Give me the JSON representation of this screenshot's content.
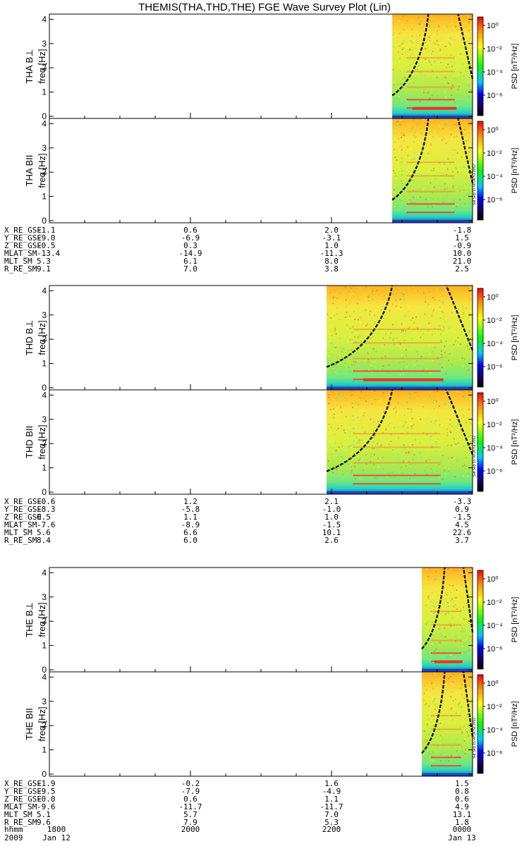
{
  "title": "THEMIS(THA,THD,THE) FGE Wave Survey Plot (Lin)",
  "colorbar": {
    "label": "PSD [nT²/Hz]",
    "tick_labels": [
      "10⁰",
      "10⁻²",
      "10⁻⁴",
      "10⁻⁶"
    ],
    "colors": [
      "#ff0000",
      "#ff8c00",
      "#ffff00",
      "#00ff00",
      "#00c8ff",
      "#0000ff",
      "#1a0060",
      "#000000"
    ]
  },
  "chart_data": [
    {
      "type": "heatmap",
      "probe": "THA",
      "panels": [
        {
          "name": "THA B⊥",
          "ylabel": "freq [Hz]",
          "ylim": [
            0,
            4
          ]
        },
        {
          "name": "THA BII",
          "ylabel": "freq [Hz]",
          "ylim": [
            0,
            4
          ]
        }
      ],
      "yticks": [
        0,
        1,
        2,
        3,
        4
      ],
      "xlim": [
        "1800",
        "0000"
      ],
      "data_start_fraction": 0.81,
      "side_stamp": "Sat Sep 15 00:36:51 2012",
      "ephemeris": [
        {
          "name": "X_RE_GSE",
          "values": [
            "-1.1",
            "0.6",
            "2.0",
            "-1.8"
          ]
        },
        {
          "name": "Y_RE_GSE",
          "values": [
            "-9.0",
            "-6.9",
            "-3.1",
            "1.5"
          ]
        },
        {
          "name": "Z_RE_GSE",
          "values": [
            "-0.5",
            "0.3",
            "1.0",
            "-0.9"
          ]
        },
        {
          "name": "MLAT_SM",
          "values": [
            "-13.4",
            "-14.9",
            "-11.3",
            "10.0"
          ]
        },
        {
          "name": "MLT_SM",
          "values": [
            "5.3",
            "6.1",
            "8.0",
            "21.0"
          ]
        },
        {
          "name": "R_RE_SM",
          "values": [
            "9.1",
            "7.0",
            "3.8",
            "2.5"
          ]
        }
      ]
    },
    {
      "type": "heatmap",
      "probe": "THD",
      "panels": [
        {
          "name": "THD B⊥",
          "ylabel": "freq [Hz]",
          "ylim": [
            0,
            4
          ]
        },
        {
          "name": "THD BII",
          "ylabel": "freq [Hz]",
          "ylim": [
            0,
            4
          ]
        }
      ],
      "yticks": [
        0,
        1,
        2,
        3,
        4
      ],
      "xlim": [
        "1800",
        "0000"
      ],
      "data_start_fraction": 0.655,
      "side_stamp": "Sat Sep 15 00:36:51 2012",
      "ephemeris": [
        {
          "name": "X_RE_GSE",
          "values": [
            "-0.6",
            "1.2",
            "2.1",
            "-3.3"
          ]
        },
        {
          "name": "Y_RE_GSE",
          "values": [
            "-8.3",
            "-5.8",
            "-1.0",
            "0.9"
          ]
        },
        {
          "name": "Z_RE_GSE",
          "values": [
            "0.5",
            "1.1",
            "1.0",
            "-1.5"
          ]
        },
        {
          "name": "MLAT_SM",
          "values": [
            "-7.6",
            "-8.9",
            "-1.5",
            "4.5"
          ]
        },
        {
          "name": "MLT_SM",
          "values": [
            "5.6",
            "6.6",
            "10.1",
            "22.6"
          ]
        },
        {
          "name": "R_RE_SM",
          "values": [
            "8.4",
            "6.0",
            "2.6",
            "3.7"
          ]
        }
      ]
    },
    {
      "type": "heatmap",
      "probe": "THE",
      "panels": [
        {
          "name": "THE B⊥",
          "ylabel": "freq [Hz]",
          "ylim": [
            0,
            4
          ]
        },
        {
          "name": "THE BII",
          "ylabel": "freq [Hz]",
          "ylim": [
            0,
            4
          ]
        }
      ],
      "yticks": [
        0,
        1,
        2,
        3,
        4
      ],
      "xlim": [
        "1800",
        "0000"
      ],
      "data_start_fraction": 0.88,
      "side_stamp": "Sat Sep 15 00:36:52 2012",
      "ephemeris": [
        {
          "name": "X_RE_GSE",
          "values": [
            "-1.9",
            "-0.2",
            "1.6",
            "1.5"
          ]
        },
        {
          "name": "Y_RE_GSE",
          "values": [
            "-9.5",
            "-7.9",
            "-4.9",
            "0.8"
          ]
        },
        {
          "name": "Z_RE_GSE",
          "values": [
            "-0.0",
            "0.6",
            "1.1",
            "0.6"
          ]
        },
        {
          "name": "MLAT_SM",
          "values": [
            "-9.6",
            "-11.7",
            "-11.7",
            "4.9"
          ]
        },
        {
          "name": "MLT_SM",
          "values": [
            "5.1",
            "5.7",
            "7.0",
            "13.1"
          ]
        },
        {
          "name": "R_RE_SM",
          "values": [
            "9.6",
            "7.9",
            "5.3",
            "1.8"
          ]
        }
      ]
    }
  ],
  "time_axis": {
    "row_label": "hhmm",
    "ticks": [
      "1800",
      "2000",
      "2200",
      "0000"
    ],
    "year": "2009",
    "start_date": "Jan 12",
    "end_date": "Jan 13"
  }
}
